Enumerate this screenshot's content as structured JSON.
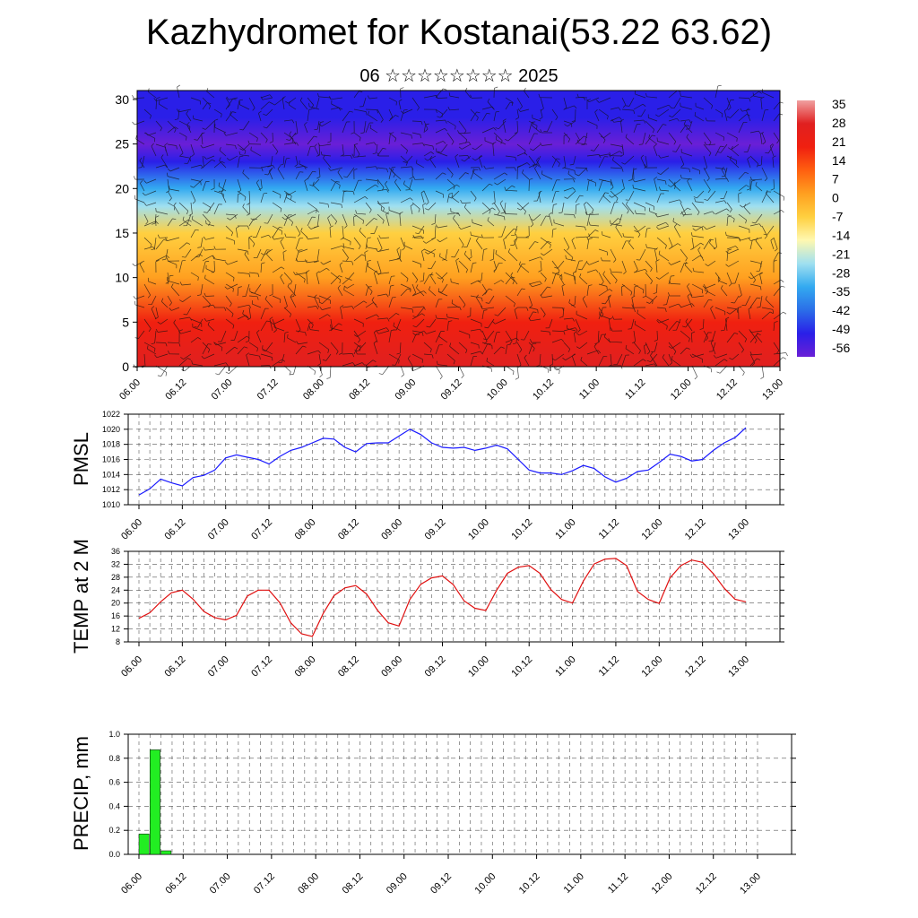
{
  "header": {
    "title": "Kazhydromet for Kostanai(53.22 63.62)",
    "subtitle": "06 ☆☆☆☆☆☆☆☆ 2025"
  },
  "chart_data": [
    {
      "type": "heatmap",
      "title": "Kazhydromet for Kostanai(53.22 63.62)",
      "subtitle": "06 ☆☆☆☆☆☆☆☆ 2025",
      "x_ticks": [
        "06.00",
        "06.12",
        "07.00",
        "07.12",
        "08.00",
        "08.12",
        "09.00",
        "09.12",
        "10.00",
        "10.12",
        "11.00",
        "11.12",
        "12.00",
        "12.12",
        "13.00"
      ],
      "y_ticks": [
        0,
        5,
        10,
        15,
        20,
        25,
        30
      ],
      "ylim": [
        0,
        31
      ],
      "colorbar_labels": [
        35,
        28,
        21,
        14,
        7,
        0,
        -7,
        -14,
        -21,
        -28,
        -35,
        -42,
        -49,
        -56
      ],
      "colorbar_range": [
        -60,
        38
      ],
      "colors": [
        "#6a1fd6",
        "#2a1fe8",
        "#2b6ee8",
        "#33aaf0",
        "#a0e0f0",
        "#fff8b0",
        "#ffd040",
        "#ffa020",
        "#ff6010",
        "#f02010",
        "#e02020",
        "#f0a0a0"
      ],
      "surface_profile": [
        {
          "level": 0,
          "value": 28
        },
        {
          "level": 5,
          "value": 18
        },
        {
          "level": 10,
          "value": 6
        },
        {
          "level": 15,
          "value": -8
        },
        {
          "level": 18,
          "value": -20
        },
        {
          "level": 20,
          "value": -32
        },
        {
          "level": 23,
          "value": -48
        },
        {
          "level": 25,
          "value": -56
        },
        {
          "level": 28,
          "value": -54
        },
        {
          "level": 31,
          "value": -50
        }
      ],
      "overlay": "wind-barbs"
    },
    {
      "type": "line",
      "ylabel": "PMSL",
      "ylim": [
        1010,
        1022
      ],
      "y_ticks": [
        1010,
        1012,
        1014,
        1016,
        1018,
        1020,
        1022
      ],
      "x_ticks": [
        "06.00",
        "06.12",
        "07.00",
        "07.12",
        "08.00",
        "08.12",
        "09.00",
        "09.12",
        "10.00",
        "10.12",
        "11.00",
        "11.12",
        "12.00",
        "12.12",
        "13.00"
      ],
      "step_hours": 3,
      "grid": true,
      "colors": [
        "#1a1aff"
      ],
      "values": [
        1011.3,
        1012.1,
        1013.4,
        1012.9,
        1012.5,
        1013.6,
        1013.9,
        1014.6,
        1016.2,
        1016.6,
        1016.3,
        1016.0,
        1015.4,
        1016.4,
        1017.2,
        1017.6,
        1018.2,
        1018.8,
        1018.7,
        1017.6,
        1017.0,
        1018.1,
        1018.2,
        1018.2,
        1019.1,
        1020.0,
        1019.3,
        1018.2,
        1017.6,
        1017.5,
        1017.6,
        1017.2,
        1017.5,
        1017.9,
        1017.4,
        1016.0,
        1014.6,
        1014.2,
        1014.2,
        1014.0,
        1014.5,
        1015.2,
        1014.8,
        1013.7,
        1013.0,
        1013.5,
        1014.4,
        1014.6,
        1015.6,
        1016.7,
        1016.4,
        1015.8,
        1016.0,
        1017.2,
        1018.2,
        1018.9,
        1020.2
      ]
    },
    {
      "type": "line",
      "ylabel": "TEMP at 2 M",
      "ylim": [
        8,
        36
      ],
      "y_ticks": [
        8,
        12,
        16,
        20,
        24,
        28,
        32,
        36
      ],
      "x_ticks": [
        "06.00",
        "06.12",
        "07.00",
        "07.12",
        "08.00",
        "08.12",
        "09.00",
        "09.12",
        "10.00",
        "10.12",
        "11.00",
        "11.12",
        "12.00",
        "12.12",
        "13.00"
      ],
      "step_hours": 3,
      "grid": true,
      "colors": [
        "#e01010"
      ],
      "values": [
        15.3,
        17.0,
        20.4,
        23.2,
        24.0,
        21.2,
        17.4,
        15.5,
        14.8,
        16.2,
        22.2,
        24.0,
        24.0,
        20.1,
        13.9,
        10.5,
        9.7,
        16.8,
        22.3,
        24.7,
        25.4,
        22.8,
        17.8,
        13.9,
        12.9,
        21.1,
        25.8,
        27.8,
        28.4,
        25.7,
        20.7,
        18.4,
        17.7,
        23.9,
        29.2,
        31.1,
        31.6,
        29.2,
        24.2,
        21.1,
        20.0,
        26.8,
        32.1,
        33.6,
        33.8,
        31.6,
        23.6,
        21.1,
        19.9,
        27.8,
        31.6,
        33.3,
        32.6,
        29.1,
        24.6,
        21.2,
        20.4
      ]
    },
    {
      "type": "bar",
      "ylabel": "PRECIP, mm",
      "ylim": [
        0,
        1
      ],
      "y_ticks": [
        "0.0",
        "0.2",
        "0.4",
        "0.6",
        "0.8",
        "1.0"
      ],
      "x_ticks": [
        "06.00",
        "06.12",
        "07.00",
        "07.12",
        "08.00",
        "08.12",
        "09.00",
        "09.12",
        "10.00",
        "10.12",
        "11.00",
        "11.12",
        "12.00",
        "12.12",
        "13.00"
      ],
      "step_hours": 3,
      "grid": true,
      "colors": [
        "#22ee22"
      ],
      "values": [
        0.17,
        0.87,
        0.03,
        0,
        0,
        0,
        0,
        0,
        0,
        0,
        0,
        0,
        0,
        0,
        0,
        0,
        0,
        0,
        0,
        0,
        0,
        0,
        0,
        0,
        0,
        0,
        0,
        0,
        0,
        0,
        0,
        0,
        0,
        0,
        0,
        0,
        0,
        0,
        0,
        0,
        0,
        0,
        0,
        0,
        0,
        0,
        0,
        0,
        0,
        0,
        0,
        0,
        0,
        0,
        0,
        0,
        0
      ]
    }
  ]
}
